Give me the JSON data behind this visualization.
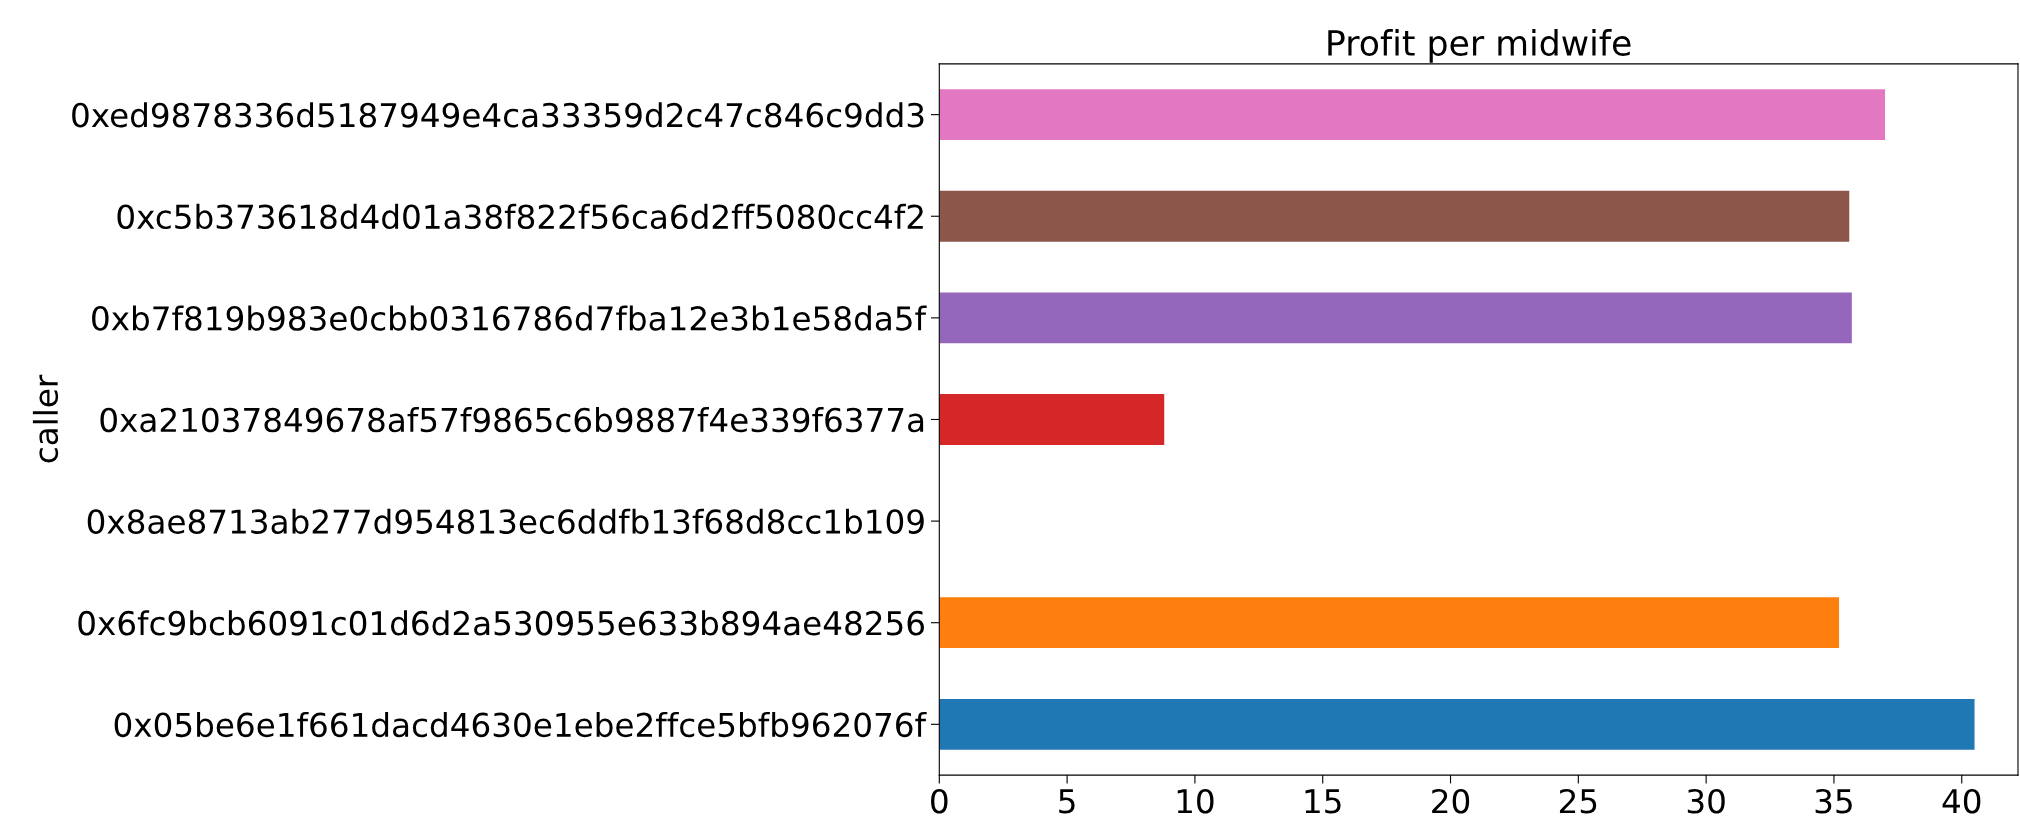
{
  "chart_data": {
    "type": "bar",
    "orientation": "horizontal",
    "title": "Profit per midwife",
    "ylabel": "caller",
    "categories": [
      "0xed9878336d5187949e4ca33359d2c47c846c9dd3",
      "0xc5b373618d4d01a38f822f56ca6d2ff5080cc4f2",
      "0xb7f819b983e0cbb0316786d7fba12e3b1e58da5f",
      "0xa21037849678af57f9865c6b9887f4e339f6377a",
      "0x8ae8713ab277d954813ec6ddfb13f68d8cc1b109",
      "0x6fc9bcb6091c01d6d2a530955e633b894ae48256",
      "0x05be6e1f661dacd4630e1ebe2ffce5bfb962076f"
    ],
    "values": [
      37.0,
      35.6,
      35.7,
      8.8,
      0,
      35.2,
      40.5
    ],
    "colors": [
      "#e377c2",
      "#8c564b",
      "#9467bd",
      "#d62728",
      "#2ca02c",
      "#ff7f0e",
      "#1f77b4"
    ],
    "xlim": [
      0,
      42.2
    ],
    "xticks": [
      0,
      5,
      10,
      15,
      20,
      25,
      30,
      35,
      40
    ],
    "grid": false
  }
}
